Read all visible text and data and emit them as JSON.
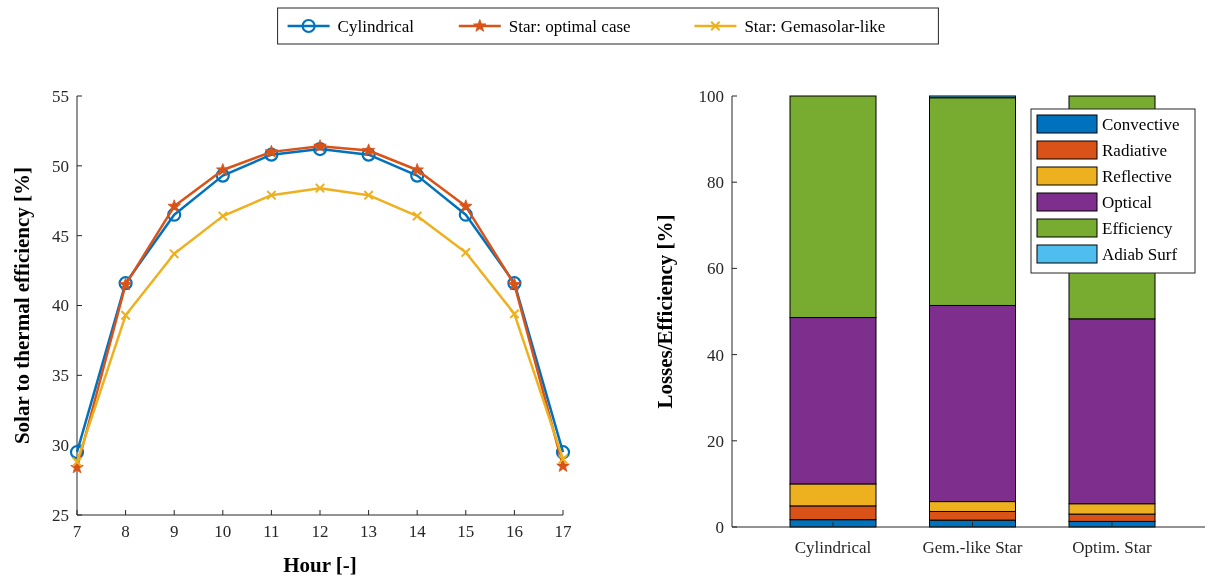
{
  "chart_data": [
    {
      "type": "line",
      "xlabel": "Hour [-]",
      "ylabel": "Solar to thermal efficiency [%]",
      "x": [
        7,
        8,
        9,
        10,
        11,
        12,
        13,
        14,
        15,
        16,
        17
      ],
      "xlim": [
        7,
        17
      ],
      "xticks": [
        7,
        8,
        9,
        10,
        11,
        12,
        13,
        14,
        15,
        16,
        17
      ],
      "ylim": [
        25,
        55
      ],
      "yticks": [
        25,
        30,
        35,
        40,
        45,
        50,
        55
      ],
      "grid": false,
      "legend": "top",
      "line_style": "solid",
      "series": [
        {
          "name": "Cylindrical",
          "color": "#0072bd",
          "marker": "circle",
          "values": [
            29.5,
            41.6,
            46.5,
            49.3,
            50.8,
            51.2,
            50.8,
            49.3,
            46.5,
            41.6,
            29.5
          ]
        },
        {
          "name": "Star: optimal case",
          "color": "#d95319",
          "marker": "star",
          "values": [
            28.4,
            41.5,
            47.1,
            49.7,
            51.0,
            51.4,
            51.1,
            49.7,
            47.1,
            41.5,
            28.5
          ]
        },
        {
          "name": "Star: Gemasolar-like",
          "color": "#edb120",
          "marker": "cross",
          "values": [
            28.8,
            39.3,
            43.7,
            46.4,
            47.9,
            48.4,
            47.9,
            46.4,
            43.8,
            39.4,
            29.0
          ]
        }
      ]
    },
    {
      "type": "bar",
      "stacked": true,
      "ylabel": "Losses/Efficiency [%]",
      "categories": [
        "Cylindrical",
        "Gem.-like Star",
        "Optim. Star"
      ],
      "ylim": [
        0,
        100
      ],
      "yticks": [
        0,
        20,
        40,
        60,
        80,
        100
      ],
      "grid": false,
      "legend": "top right",
      "series": [
        {
          "name": "Convective",
          "color": "#0072bd",
          "values": [
            1.7,
            1.6,
            1.3
          ]
        },
        {
          "name": "Radiative",
          "color": "#d95319",
          "values": [
            3.2,
            2.0,
            1.7
          ]
        },
        {
          "name": "Reflective",
          "color": "#edb120",
          "values": [
            5.1,
            2.3,
            2.4
          ]
        },
        {
          "name": "Optical",
          "color": "#7e2f8e",
          "values": [
            38.6,
            45.5,
            42.9
          ]
        },
        {
          "name": "Efficiency",
          "color": "#77ac30",
          "values": [
            51.4,
            48.2,
            51.7
          ]
        },
        {
          "name": "Adiab Surf",
          "color": "#4dbeee",
          "values": [
            0,
            0.4,
            0
          ]
        }
      ]
    }
  ]
}
